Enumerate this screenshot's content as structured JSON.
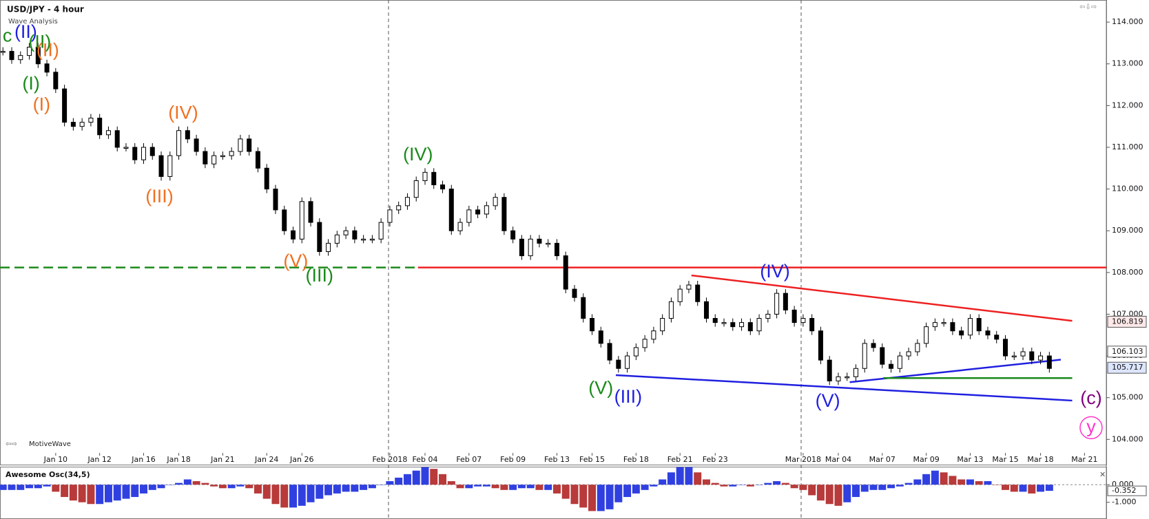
{
  "chart_data": [
    {
      "type": "candlestick",
      "title": "USD/JPY - 4 hour",
      "subtitle": "Wave Analysis",
      "watermark": "MotiveWave",
      "categories": [
        null,
        null,
        null,
        null,
        null,
        null,
        "Jan 10",
        null,
        null,
        null,
        null,
        "Jan 12",
        null,
        null,
        null,
        null,
        "Jan 16",
        null,
        null,
        null,
        "Jan 18",
        null,
        null,
        null,
        null,
        "Jan 21",
        null,
        null,
        null,
        null,
        "Jan 24",
        null,
        null,
        null,
        "Jan 26",
        null,
        null,
        null,
        null,
        null,
        null,
        null,
        null,
        null,
        "Feb 2018",
        null,
        null,
        null,
        "Feb 04",
        null,
        null,
        null,
        null,
        "Feb 07",
        null,
        null,
        null,
        null,
        "Feb 09",
        null,
        null,
        null,
        null,
        "Feb 13",
        null,
        null,
        null,
        "Feb 15",
        null,
        null,
        null,
        null,
        "Feb 18",
        null,
        null,
        null,
        null,
        "Feb 21",
        null,
        null,
        null,
        "Feb 23",
        null,
        null,
        null,
        null,
        null,
        null,
        null,
        null,
        null,
        "Mar 2018",
        null,
        null,
        null,
        "Mar 04",
        null,
        null,
        null,
        null,
        "Mar 07",
        null,
        null,
        null,
        null,
        "Mar 09",
        null,
        null,
        null,
        null,
        "Mar 13",
        null,
        null,
        null,
        "Mar 15",
        null,
        null,
        null,
        "Mar 18",
        null,
        null,
        null,
        null,
        "Mar 21"
      ],
      "values": [
        113.3,
        113.1,
        113.2,
        113.4,
        113.0,
        112.8,
        112.4,
        111.6,
        111.5,
        111.6,
        111.7,
        111.3,
        111.4,
        111.0,
        111.0,
        110.7,
        111.0,
        110.8,
        110.3,
        110.8,
        111.4,
        111.2,
        110.9,
        110.6,
        110.8,
        110.8,
        110.9,
        111.2,
        110.9,
        110.5,
        110.0,
        109.5,
        109.0,
        108.8,
        109.7,
        109.2,
        108.5,
        108.7,
        108.9,
        109.0,
        108.8,
        108.8,
        108.8,
        109.2,
        109.5,
        109.6,
        109.8,
        110.2,
        110.4,
        110.1,
        110.0,
        109.0,
        109.2,
        109.5,
        109.4,
        109.6,
        109.8,
        109.0,
        108.8,
        108.4,
        108.8,
        108.7,
        108.7,
        108.4,
        107.6,
        107.4,
        106.9,
        106.6,
        106.3,
        105.9,
        105.7,
        106.0,
        106.2,
        106.4,
        106.6,
        106.9,
        107.3,
        107.6,
        107.7,
        107.3,
        106.9,
        106.8,
        106.8,
        106.7,
        106.8,
        106.6,
        106.9,
        107.0,
        107.5,
        107.1,
        106.8,
        106.9,
        106.6,
        105.9,
        105.4,
        105.5,
        105.5,
        105.7,
        106.3,
        106.2,
        105.8,
        105.7,
        106.0,
        106.1,
        106.3,
        106.7,
        106.8,
        106.8,
        106.6,
        106.5,
        106.9,
        106.6,
        106.5,
        106.4,
        106.0,
        106.0,
        106.1,
        105.9,
        106.0,
        105.7,
        null,
        null,
        null,
        null
      ],
      "ylim": [
        103.72,
        114.53
      ],
      "yticks": [
        {
          "value": 104,
          "label": "104.000"
        },
        {
          "value": 105,
          "label": "105.000"
        },
        {
          "value": 106,
          "label": "106.000"
        },
        {
          "value": 107,
          "label": "107.000"
        },
        {
          "value": 108,
          "label": "108.000"
        },
        {
          "value": 109,
          "label": "109.000"
        },
        {
          "value": 110,
          "label": "110.000"
        },
        {
          "value": 111,
          "label": "111.000"
        },
        {
          "value": 112,
          "label": "112.000"
        },
        {
          "value": 113,
          "label": "113.000"
        },
        {
          "value": 114,
          "label": "114.000"
        }
      ],
      "price_markers": [
        106.819,
        106.103,
        105.717
      ],
      "price_marker_colors": [
        "#ffe9e9",
        "#ffffff",
        "#dde6ff"
      ],
      "lines": [
        {
          "x": [
            -0.33,
            47.2
          ],
          "y": [
            108.12,
            108.12
          ],
          "color": "#1a8a1a",
          "dashed": true
        },
        {
          "x": [
            47.2,
            125.5
          ],
          "y": [
            108.12,
            108.12
          ],
          "color": "#ee2020",
          "dashed": false
        },
        {
          "x": [
            78.3,
            121.6
          ],
          "y": [
            107.93,
            106.84
          ],
          "color": "#ee2020",
          "dashed": false
        },
        {
          "x": [
            69.7,
            121.6
          ],
          "y": [
            105.54,
            104.93
          ],
          "color": "#1f1fe0",
          "dashed": false
        },
        {
          "x": [
            96.3,
            120.3
          ],
          "y": [
            105.37,
            105.91
          ],
          "color": "#1f1fe0",
          "dashed": false
        },
        {
          "x": [
            100.1,
            121.6
          ],
          "y": [
            105.47,
            105.47
          ],
          "color": "#1a8a1a",
          "dashed": false
        }
      ],
      "wave_labels": [
        {
          "text": "c",
          "color": "#1a8a1a",
          "x": 0.5,
          "y": 113.65
        },
        {
          "text": "(II)",
          "color": "#1f1fe0",
          "x": 2.6,
          "y": 113.74
        },
        {
          "text": "(II)",
          "color": "#1a8a1a",
          "x": 4.2,
          "y": 113.5
        },
        {
          "text": "(II)",
          "color": "#f07020",
          "x": 5.1,
          "y": 113.3
        },
        {
          "text": "(I)",
          "color": "#1a8a1a",
          "x": 3.2,
          "y": 112.5
        },
        {
          "text": "(I)",
          "color": "#f07020",
          "x": 4.4,
          "y": 112.0
        },
        {
          "text": "(IV)",
          "color": "#f07020",
          "x": 20.5,
          "y": 111.8
        },
        {
          "text": "(III)",
          "color": "#f07020",
          "x": 17.8,
          "y": 109.8
        },
        {
          "text": "(V)",
          "color": "#f07020",
          "x": 33.3,
          "y": 108.25
        },
        {
          "text": "(III)",
          "color": "#1a8a1a",
          "x": 36,
          "y": 107.9
        },
        {
          "text": "(IV)",
          "color": "#1a8a1a",
          "x": 47.2,
          "y": 110.8
        },
        {
          "text": "(V)",
          "color": "#1a8a1a",
          "x": 68,
          "y": 105.2
        },
        {
          "text": "(III)",
          "color": "#1f1fe0",
          "x": 71.1,
          "y": 105.0
        },
        {
          "text": "(IV)",
          "color": "#1f1fe0",
          "x": 87.8,
          "y": 108.0
        },
        {
          "text": "(V)",
          "color": "#1f1fe0",
          "x": 93.8,
          "y": 104.9
        },
        {
          "text": "(c)",
          "color": "#800080",
          "x": 123.75,
          "y": 104.96
        },
        {
          "text": "y",
          "color": "#ff33cc",
          "x": 123.75,
          "y": 104.28,
          "circled": true
        }
      ]
    },
    {
      "type": "bar",
      "title": "Awesome Osc(34,5)",
      "values": [
        -0.3,
        -0.3,
        -0.3,
        -0.2,
        -0.2,
        -0.1,
        -0.4,
        -0.7,
        -0.9,
        -1.0,
        -1.1,
        -1.1,
        -1.0,
        -0.9,
        -0.8,
        -0.7,
        -0.5,
        -0.3,
        -0.2,
        0.0,
        0.1,
        0.3,
        0.2,
        0.1,
        -0.1,
        -0.2,
        -0.2,
        -0.1,
        -0.2,
        -0.5,
        -0.8,
        -1.1,
        -1.3,
        -1.3,
        -1.2,
        -1.0,
        -0.8,
        -0.6,
        -0.5,
        -0.4,
        -0.4,
        -0.3,
        -0.2,
        0.0,
        0.2,
        0.4,
        0.6,
        0.8,
        1.0,
        0.9,
        0.6,
        0.2,
        -0.2,
        -0.2,
        -0.1,
        -0.1,
        -0.2,
        -0.3,
        -0.3,
        -0.2,
        -0.2,
        -0.3,
        -0.3,
        -0.5,
        -0.8,
        -1.1,
        -1.3,
        -1.5,
        -1.5,
        -1.4,
        -1.0,
        -0.7,
        -0.5,
        -0.3,
        -0.1,
        0.3,
        0.7,
        1.0,
        1.0,
        0.7,
        0.3,
        0.1,
        -0.1,
        -0.1,
        0.0,
        -0.1,
        0.0,
        0.1,
        0.2,
        0.1,
        -0.2,
        -0.3,
        -0.6,
        -0.9,
        -1.1,
        -1.2,
        -1.0,
        -0.7,
        -0.4,
        -0.3,
        -0.3,
        -0.2,
        -0.1,
        0.1,
        0.3,
        0.6,
        0.8,
        0.7,
        0.5,
        0.3,
        0.3,
        0.2,
        0.2,
        0.0,
        -0.3,
        -0.4,
        -0.4,
        -0.5,
        -0.4,
        -0.35,
        null,
        null,
        null,
        null
      ],
      "ylim": [
        -1.96,
        1.08
      ],
      "yticks": [
        {
          "value": 0,
          "label": "0.000"
        },
        {
          "value": -1,
          "label": "-1.000"
        }
      ],
      "markers": [
        -0.352
      ],
      "up_color": "#3040e0",
      "down_color": "#b83a3a"
    }
  ]
}
